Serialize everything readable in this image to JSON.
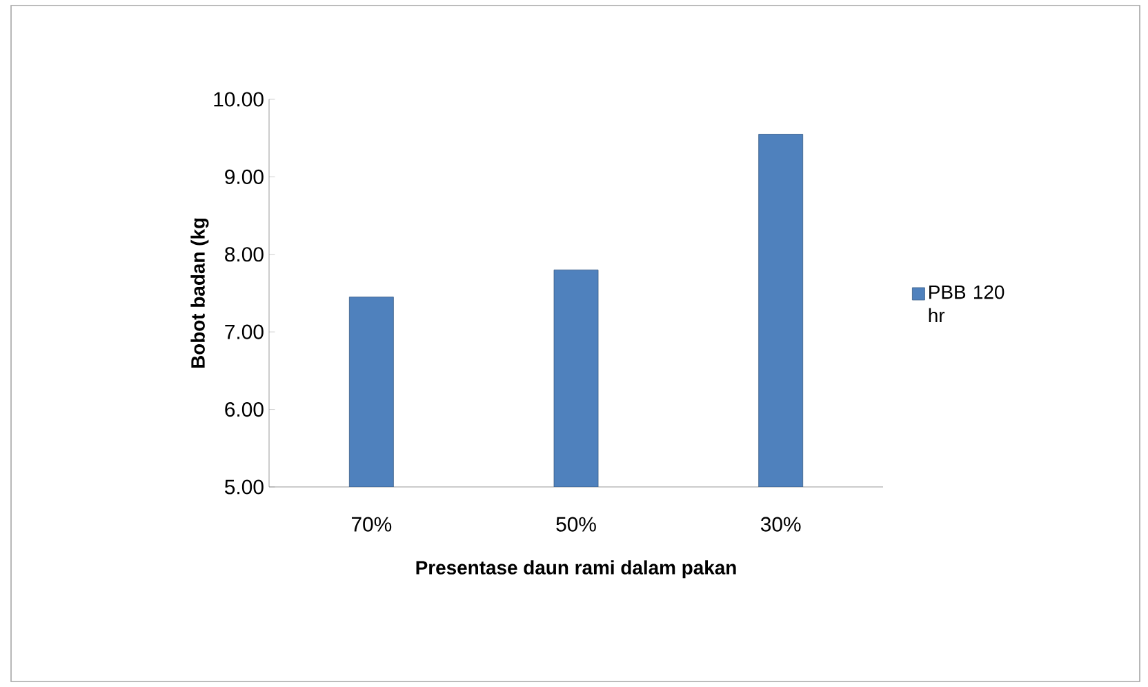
{
  "chart_data": {
    "type": "bar",
    "xlabel": "Presentase  daun rami dalam pakan",
    "ylabel": "Bobot badan (kg",
    "categories": [
      "70%",
      "50%",
      "30%"
    ],
    "series": [
      {
        "name": "PBB 120 hr",
        "color": "#4f81bd",
        "values": [
          7.45,
          7.8,
          9.55
        ]
      }
    ],
    "ylim": [
      5,
      10
    ],
    "yticks": [
      {
        "value": 5,
        "label": "5.00"
      },
      {
        "value": 6,
        "label": "6.00"
      },
      {
        "value": 7,
        "label": "7.00"
      },
      {
        "value": 8,
        "label": "8.00"
      },
      {
        "value": 9,
        "label": "9.00"
      },
      {
        "value": 10,
        "label": "10.00"
      }
    ],
    "legend": "right",
    "grid": false
  }
}
